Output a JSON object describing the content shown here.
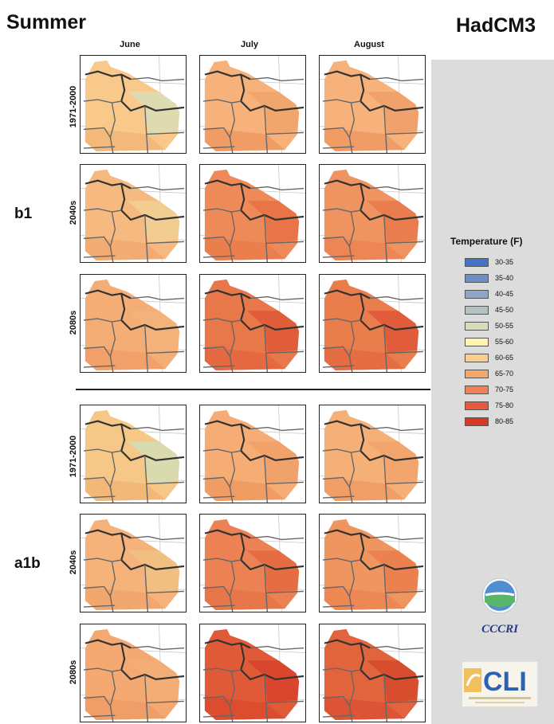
{
  "title": "Summer",
  "model": "HadCM3",
  "months": [
    "June",
    "July",
    "August"
  ],
  "scenarios": [
    {
      "name": "b1",
      "periods": [
        "1971-2000",
        "2040s",
        "2080s"
      ]
    },
    {
      "name": "a1b",
      "periods": [
        "1971-2000",
        "2040s",
        "2080s"
      ]
    }
  ],
  "legend": {
    "title": "Temperature (F)",
    "items": [
      {
        "label": "30-35",
        "color": "#4472c4"
      },
      {
        "label": "35-40",
        "color": "#6e8fc6"
      },
      {
        "label": "40-45",
        "color": "#8fa7c4"
      },
      {
        "label": "45-50",
        "color": "#b2c2c0"
      },
      {
        "label": "50-55",
        "color": "#d6ddb8"
      },
      {
        "label": "55-60",
        "color": "#fff4b0"
      },
      {
        "label": "60-65",
        "color": "#fbcf8b"
      },
      {
        "label": "65-70",
        "color": "#f5a86b"
      },
      {
        "label": "70-75",
        "color": "#ee8256"
      },
      {
        "label": "75-80",
        "color": "#e55a3c"
      },
      {
        "label": "80-85",
        "color": "#d63a26"
      }
    ]
  },
  "map_grid": [
    [
      {
        "base": "#f8c98a",
        "east": "#d9ddb3",
        "south": "#f1b778"
      },
      {
        "base": "#f6b27a",
        "east": "#f1a46c",
        "south": "#f09a63"
      },
      {
        "base": "#f6b27a",
        "east": "#f1a06a",
        "south": "#f09a63"
      }
    ],
    [
      {
        "base": "#f6ba80",
        "east": "#f2cf93",
        "south": "#f2aa70"
      },
      {
        "base": "#ee8a58",
        "east": "#e87146",
        "south": "#ea7c4d"
      },
      {
        "base": "#ef9460",
        "east": "#e97a4b",
        "south": "#ec8453"
      }
    ],
    [
      {
        "base": "#f5ad76",
        "east": "#f2b27a",
        "south": "#f09e67"
      },
      {
        "base": "#e8774a",
        "east": "#e05a37",
        "south": "#e4673f"
      },
      {
        "base": "#ea7d4c",
        "east": "#e0593a",
        "south": "#e46c42"
      }
    ],
    [
      {
        "base": "#f6c888",
        "east": "#d6dcb2",
        "south": "#f1b677"
      },
      {
        "base": "#f5ac75",
        "east": "#f1a16a",
        "south": "#f09b63"
      },
      {
        "base": "#f5b078",
        "east": "#f2a46c",
        "south": "#f09c64"
      }
    ],
    [
      {
        "base": "#f5b27a",
        "east": "#efc083",
        "south": "#f1a56d"
      },
      {
        "base": "#ec8253",
        "east": "#e46a41",
        "south": "#e8744a"
      },
      {
        "base": "#ef9560",
        "east": "#ea7e4e",
        "south": "#ec8654"
      }
    ],
    [
      {
        "base": "#f4a872",
        "east": "#f2ae76",
        "south": "#f09c66"
      },
      {
        "base": "#e15a38",
        "east": "#d8432c",
        "south": "#db4b30"
      },
      {
        "base": "#e2643d",
        "east": "#d84a2e",
        "south": "#dc5234"
      }
    ]
  ]
}
